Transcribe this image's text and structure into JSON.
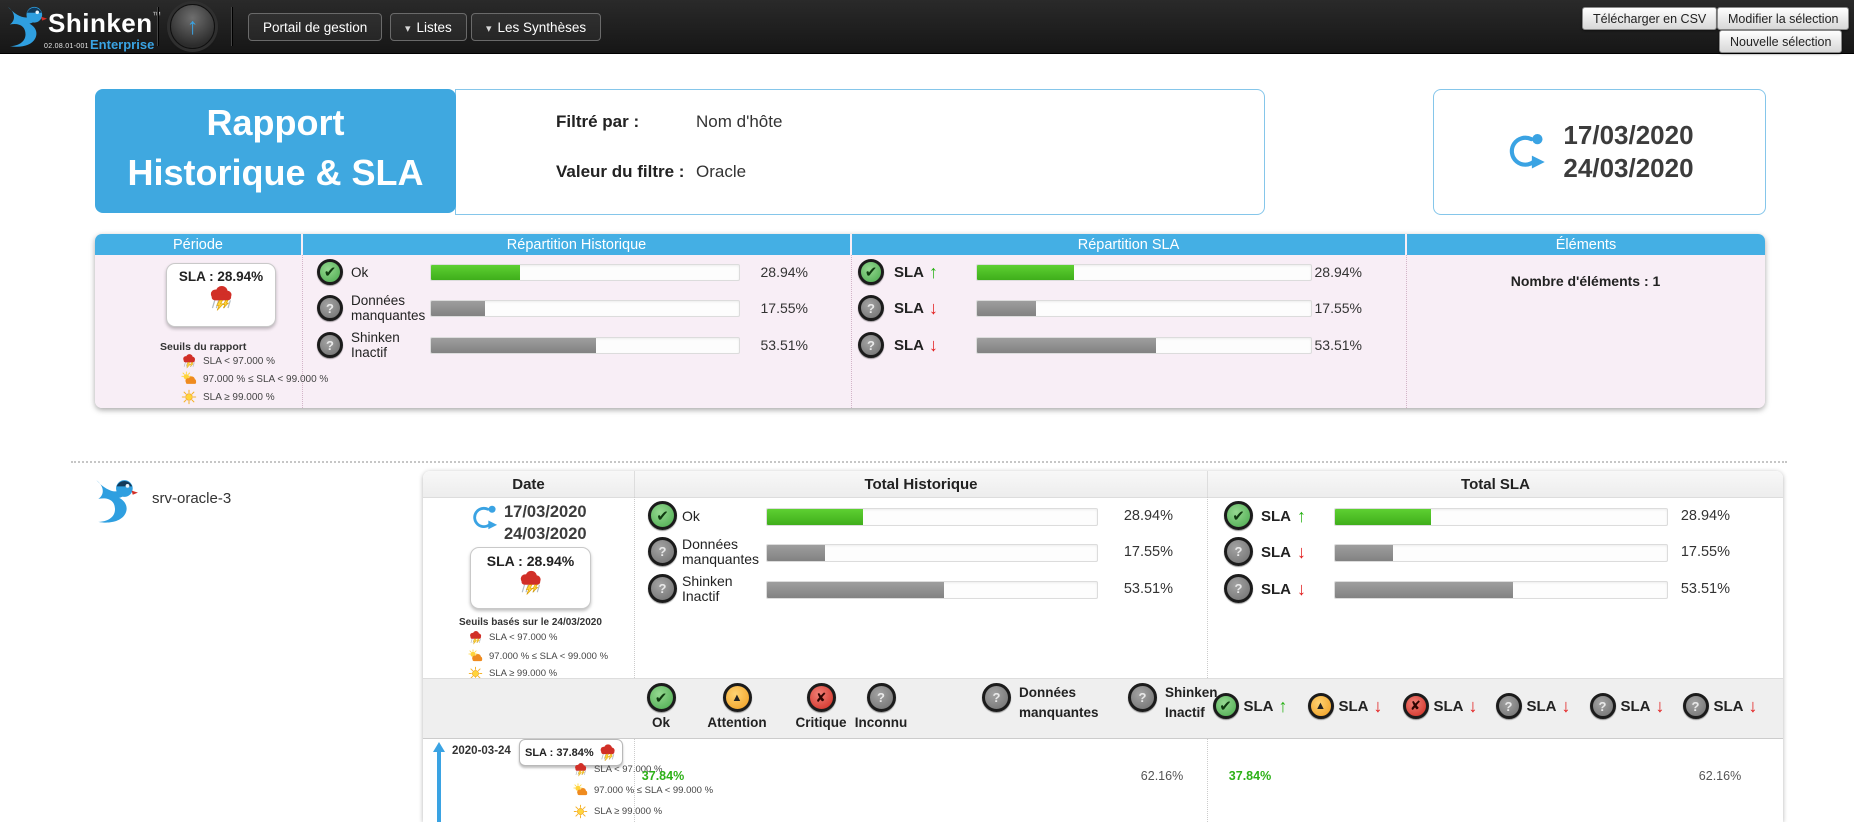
{
  "navbar": {
    "brand": {
      "name": "Shinken",
      "tm": "™",
      "edition": "Enterprise",
      "version": "02.08.01-001",
      "logo_icon": "shinken-bird-logo"
    },
    "home_button_icon": "up-arrow-icon",
    "menu": [
      {
        "label": "Portail de gestion",
        "caret": false
      },
      {
        "label": "Listes",
        "caret": true
      },
      {
        "label": "Les Synthèses",
        "caret": true
      }
    ],
    "actions": {
      "download_csv": "Télécharger en CSV",
      "modify_selection": "Modifier la sélection",
      "new_selection": "Nouvelle sélection"
    }
  },
  "report_header": {
    "title_line1": "Rapport",
    "title_line2": "Historique & SLA",
    "filtered_by_label": "Filtré par :",
    "filtered_by_value": "Nom d'hôte",
    "filter_value_label": "Valeur du filtre :",
    "filter_value_value": "Oracle",
    "period": {
      "start": "17/03/2020",
      "end": "24/03/2020",
      "icon": "period-cycle-icon"
    }
  },
  "colors": {
    "accent_blue": "#3fa8e0",
    "bar_green": "#4cc424",
    "bar_gray": "#8f8f8f",
    "value_green": "#2db117",
    "arrow_red": "#e21b1b",
    "pink_bg": "#f8eef6"
  },
  "summary": {
    "headers": [
      "Période",
      "Répartition Historique",
      "Répartition SLA",
      "Éléments"
    ],
    "periode": {
      "sla_badge": "SLA : 28.94%",
      "badge_icon": "storm-icon",
      "thresholds_title": "Seuils du rapport",
      "thresholds": [
        {
          "icon": "storm-icon",
          "label": "SLA < 97.000 %"
        },
        {
          "icon": "sun-cloud-icon",
          "label": "97.000 % ≤ SLA < 99.000 %"
        },
        {
          "icon": "sun-icon",
          "label": "SLA ≥ 99.000 %"
        }
      ]
    },
    "historique": [
      {
        "icon": "ok-circle-icon",
        "label": "Ok",
        "percent": 28.94,
        "display": "28.94%",
        "bar": "green"
      },
      {
        "icon": "question-circle-icon",
        "label": "Données manquantes",
        "percent": 17.55,
        "display": "17.55%",
        "bar": "gray"
      },
      {
        "icon": "question-circle-icon",
        "label": "Shinken Inactif",
        "percent": 53.51,
        "display": "53.51%",
        "bar": "gray"
      }
    ],
    "sla": [
      {
        "icon": "ok-circle-icon",
        "label": "SLA",
        "direction": "up",
        "percent": 28.94,
        "display": "28.94%",
        "bar": "green"
      },
      {
        "icon": "question-circle-icon",
        "label": "SLA",
        "direction": "down",
        "percent": 17.55,
        "display": "17.55%",
        "bar": "gray"
      },
      {
        "icon": "question-circle-icon",
        "label": "SLA",
        "direction": "down",
        "percent": 53.51,
        "display": "53.51%",
        "bar": "gray"
      }
    ],
    "elements": {
      "count_label": "Nombre d'éléments : 1"
    }
  },
  "host": {
    "name": "srv-oracle-3",
    "logo_icon": "shinken-bird-logo",
    "table_headers": [
      "Date",
      "Total Historique",
      "Total SLA"
    ],
    "period": {
      "start": "17/03/2020",
      "end": "24/03/2020",
      "icon": "period-cycle-icon"
    },
    "sla_badge": "SLA : 28.94%",
    "badge_icon": "storm-icon",
    "thresholds_title": "Seuils basés sur le 24/03/2020",
    "thresholds": [
      {
        "icon": "storm-icon",
        "label": "SLA < 97.000 %"
      },
      {
        "icon": "sun-cloud-icon",
        "label": "97.000 % ≤ SLA < 99.000 %"
      },
      {
        "icon": "sun-icon",
        "label": "SLA ≥ 99.000 %"
      }
    ],
    "historique": [
      {
        "icon": "ok-circle-icon",
        "label": "Ok",
        "percent": 28.94,
        "display": "28.94%",
        "bar": "green"
      },
      {
        "icon": "question-circle-icon",
        "label": "Données manquantes",
        "percent": 17.55,
        "display": "17.55%",
        "bar": "gray"
      },
      {
        "icon": "question-circle-icon",
        "label": "Shinken Inactif",
        "percent": 53.51,
        "display": "53.51%",
        "bar": "gray"
      }
    ],
    "sla": [
      {
        "icon": "ok-circle-icon",
        "label": "SLA",
        "direction": "up",
        "percent": 28.94,
        "display": "28.94%",
        "bar": "green"
      },
      {
        "icon": "question-circle-icon",
        "label": "SLA",
        "direction": "down",
        "percent": 17.55,
        "display": "17.55%",
        "bar": "gray"
      },
      {
        "icon": "question-circle-icon",
        "label": "SLA",
        "direction": "down",
        "percent": 53.51,
        "display": "53.51%",
        "bar": "gray"
      }
    ],
    "status_columns": [
      {
        "icon": "ok-circle-icon",
        "label": "Ok"
      },
      {
        "icon": "warning-circle-icon",
        "label": "Attention"
      },
      {
        "icon": "critical-circle-icon",
        "label": "Critique"
      },
      {
        "icon": "question-circle-icon",
        "label": "Inconnu"
      },
      {
        "icon": "question-circle-icon",
        "label": "Données manquantes"
      },
      {
        "icon": "question-circle-icon",
        "label": "Shinken Inactif"
      }
    ],
    "sla_columns": [
      {
        "icon": "ok-circle-icon",
        "label": "SLA",
        "direction": "up"
      },
      {
        "icon": "warning-circle-icon",
        "label": "SLA",
        "direction": "down"
      },
      {
        "icon": "critical-circle-icon",
        "label": "SLA",
        "direction": "down"
      },
      {
        "icon": "question-circle-icon",
        "label": "SLA",
        "direction": "down"
      },
      {
        "icon": "question-circle-icon",
        "label": "SLA",
        "direction": "down"
      },
      {
        "icon": "question-circle-icon",
        "label": "SLA",
        "direction": "down"
      }
    ],
    "day_rows": [
      {
        "date": "2020-03-24",
        "sla_badge": "SLA : 37.84%",
        "badge_icon": "storm-icon",
        "thresholds": [
          {
            "icon": "storm-icon",
            "label": "SLA < 97.000 %"
          },
          {
            "icon": "sun-cloud-icon",
            "label": "97.000 % ≤ SLA < 99.000 %"
          },
          {
            "icon": "sun-icon",
            "label": "SLA ≥ 99.000 %"
          }
        ],
        "historique_values": {
          "ok": "37.84%",
          "shinken_inactif": "62.16%"
        },
        "sla_values": {
          "sla_up": "37.84%",
          "sla_down_shinken": "62.16%"
        }
      }
    ]
  }
}
